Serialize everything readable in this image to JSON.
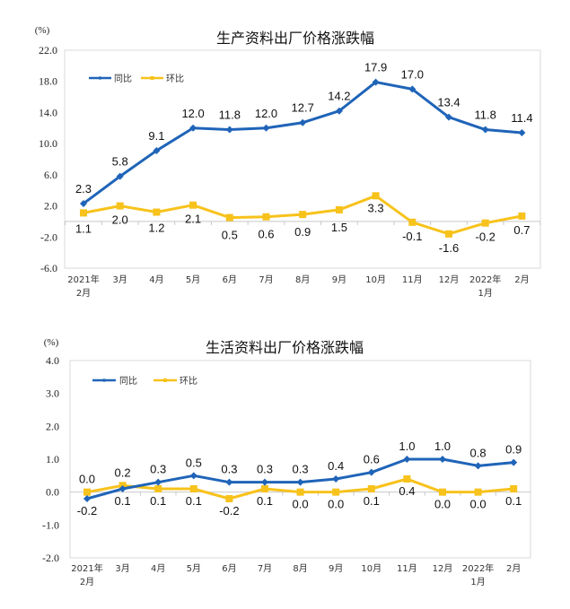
{
  "chart_data": [
    {
      "type": "line",
      "title": "生产资料出厂价格涨跌幅",
      "ylabel": "(%)",
      "xlabel": "",
      "ylim": [
        -6.0,
        22.0
      ],
      "yticks": [
        "22.0",
        "18.0",
        "14.0",
        "10.0",
        "6.0",
        "2.0",
        "-2.0",
        "-6.0"
      ],
      "ytick_values": [
        22,
        18,
        14,
        10,
        6,
        2,
        -2,
        -6
      ],
      "categories": [
        [
          "2021年",
          "2月"
        ],
        [
          "3月"
        ],
        [
          "4月"
        ],
        [
          "5月"
        ],
        [
          "6月"
        ],
        [
          "7月"
        ],
        [
          "8月"
        ],
        [
          "9月"
        ],
        [
          "10月"
        ],
        [
          "11月"
        ],
        [
          "12月"
        ],
        [
          "2022年",
          "1月"
        ],
        [
          "2月"
        ]
      ],
      "legend_position": "top-left",
      "grid": false,
      "series": [
        {
          "name": "同比",
          "color": "#1f64b8",
          "marker": "diamond",
          "values": [
            2.3,
            5.8,
            9.1,
            12.0,
            11.8,
            12.0,
            12.7,
            14.2,
            17.9,
            17.0,
            13.4,
            11.8,
            11.4
          ],
          "labels": [
            "2.3",
            "5.8",
            "9.1",
            "12.0",
            "11.8",
            "12.0",
            "12.7",
            "14.2",
            "17.9",
            "17.0",
            "13.4",
            "11.8",
            "11.4"
          ]
        },
        {
          "name": "环比",
          "color": "#f7c21b",
          "marker": "square",
          "values": [
            1.1,
            2.0,
            1.2,
            2.1,
            0.5,
            0.6,
            0.9,
            1.5,
            3.3,
            -0.1,
            -1.6,
            -0.2,
            0.7
          ],
          "labels": [
            "1.1",
            "2.0",
            "1.2",
            "2.1",
            "0.5",
            "0.6",
            "0.9",
            "1.5",
            "3.3",
            "-0.1",
            "-1.6",
            "-0.2",
            "0.7"
          ]
        }
      ]
    },
    {
      "type": "line",
      "title": "生活资料出厂价格涨跌幅",
      "ylabel": "(%)",
      "xlabel": "",
      "ylim": [
        -2.0,
        4.0
      ],
      "yticks": [
        "4.0",
        "3.0",
        "2.0",
        "1.0",
        "0.0",
        "-1.0",
        "-2.0"
      ],
      "ytick_values": [
        4,
        3,
        2,
        1,
        0,
        -1,
        -2
      ],
      "categories": [
        [
          "2021年",
          "2月"
        ],
        [
          "3月"
        ],
        [
          "4月"
        ],
        [
          "5月"
        ],
        [
          "6月"
        ],
        [
          "7月"
        ],
        [
          "8月"
        ],
        [
          "9月"
        ],
        [
          "10月"
        ],
        [
          "11月"
        ],
        [
          "12月"
        ],
        [
          "2022年",
          "1月"
        ],
        [
          "2月"
        ]
      ],
      "legend_position": "top-left",
      "grid": false,
      "series": [
        {
          "name": "同比",
          "color": "#1f64b8",
          "marker": "diamond",
          "values": [
            -0.2,
            0.1,
            0.3,
            0.5,
            0.3,
            0.3,
            0.3,
            0.4,
            0.6,
            1.0,
            1.0,
            0.8,
            0.9
          ],
          "labels": [
            "-0.2",
            "0.1",
            "0.3",
            "0.5",
            "0.3",
            "0.3",
            "0.3",
            "0.4",
            "0.6",
            "1.0",
            "1.0",
            "0.8",
            "0.9"
          ]
        },
        {
          "name": "环比",
          "color": "#f7c21b",
          "marker": "square",
          "values": [
            0.0,
            0.2,
            0.1,
            0.1,
            -0.2,
            0.1,
            0.0,
            0.0,
            0.1,
            0.4,
            0.0,
            0.0,
            0.1
          ],
          "labels": [
            "0.0",
            "0.2",
            "0.1",
            "0.1",
            "-0.2",
            "0.1",
            "0.0",
            "0.0",
            "0.1",
            "0.4",
            "0.0",
            "0.0",
            "0.1"
          ]
        }
      ]
    }
  ]
}
